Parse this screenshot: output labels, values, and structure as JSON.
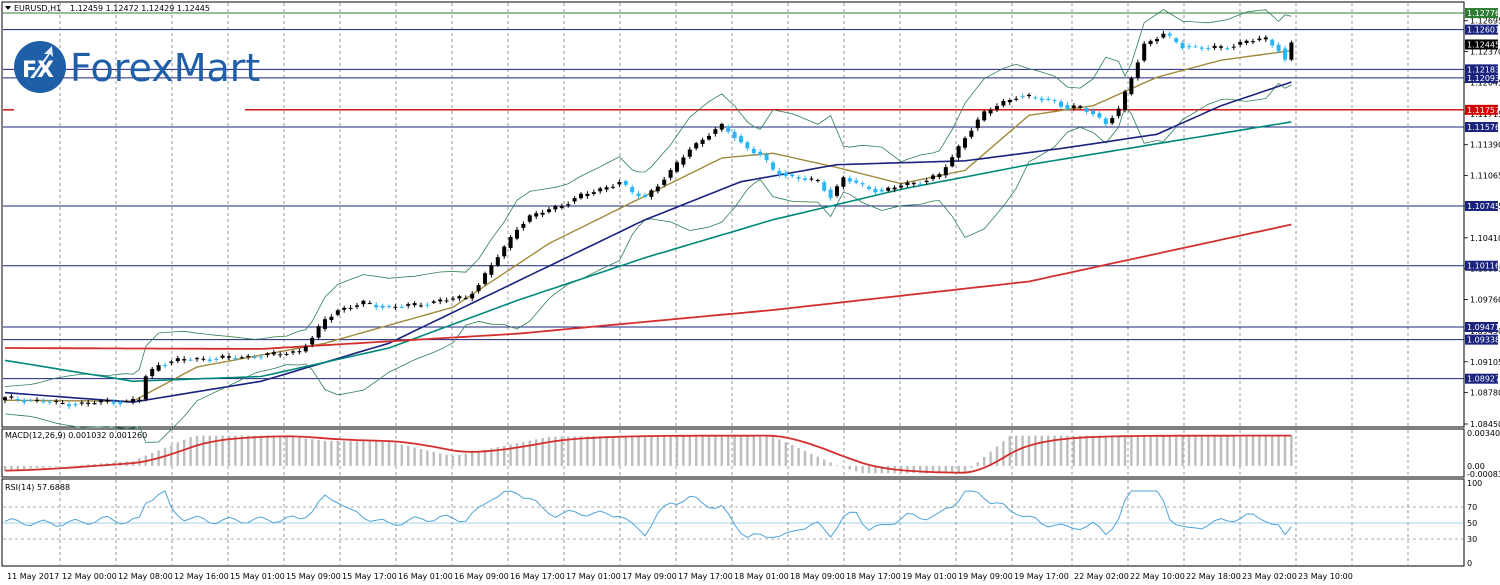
{
  "header": {
    "symbol": "EURUSD,H1",
    "ohlc": "1.12459 1.12472 1.12429 1.12445",
    "macd_label": "MACD(12,26,9) 0.001032 0.001260",
    "rsi_label": "RSI(14) 57.6888"
  },
  "logo": {
    "badge": "FX",
    "text": "ForexMart"
  },
  "price_axis": {
    "ticks": [
      "1.12695",
      "1.12370",
      "1.12045",
      "1.11715",
      "1.11390",
      "1.11065",
      "1.10745",
      "1.10410",
      "1.10085",
      "1.09760",
      "1.09430",
      "1.09105",
      "1.08780",
      "1.08450"
    ],
    "current_price": "1.12445"
  },
  "macd_axis": {
    "ticks": [
      "0.003401",
      "0.00",
      "-0.000832"
    ]
  },
  "rsi_axis": {
    "ticks": [
      "100",
      "70",
      "50",
      "30",
      "0"
    ]
  },
  "time_axis": {
    "labels": [
      "11 May 2017",
      "12 May 00:00",
      "12 May 08:00",
      "12 May 16:00",
      "15 May 01:00",
      "15 May 09:00",
      "15 May 17:00",
      "16 May 01:00",
      "16 May 09:00",
      "16 May 17:00",
      "17 May 01:00",
      "17 May 09:00",
      "17 May 17:00",
      "18 May 01:00",
      "18 May 09:00",
      "18 May 17:00",
      "19 May 01:00",
      "19 May 09:00",
      "19 May 17:00",
      "22 May 02:00",
      "22 May 10:00",
      "22 May 18:00",
      "23 May 02:00",
      "23 May 10:00"
    ]
  },
  "levels": [
    {
      "value": "1.12776",
      "color": "#2e7d32",
      "bg": "#2e7d32"
    },
    {
      "value": "1.12601",
      "color": "#1a237e",
      "bg": "#1a237e"
    },
    {
      "value": "1.12183",
      "color": "#1a237e",
      "bg": "#1a237e"
    },
    {
      "value": "1.12093",
      "color": "#1a237e",
      "bg": "#1a237e"
    },
    {
      "value": "1.11757",
      "color": "#d50000",
      "bg": "#d50000"
    },
    {
      "value": "1.11576",
      "color": "#1a237e",
      "bg": "#1a237e"
    },
    {
      "value": "1.10745",
      "color": "#1a237e",
      "bg": "#1a237e"
    },
    {
      "value": "1.10116",
      "color": "#1a237e",
      "bg": "#1a237e"
    },
    {
      "value": "1.09471",
      "color": "#1a237e",
      "bg": "#1a237e"
    },
    {
      "value": "1.09338",
      "color": "#1a237e",
      "bg": "#1a237e"
    },
    {
      "value": "1.08927",
      "color": "#1a237e",
      "bg": "#1a237e"
    }
  ],
  "colors": {
    "bull": "#000000",
    "bear": "#29b6f6",
    "ma_fast": "#a08a3c",
    "ma_mid": "#1a237e",
    "ma_slow": "#00897b",
    "ma_long": "#d32f2f",
    "bands": "#2e7d5a",
    "macd_hist": "#bdbdbd",
    "macd_signal": "#d32f2f",
    "rsi": "#4fa3d8"
  },
  "chart_data": {
    "type": "candlestick",
    "title": "EURUSD,H1",
    "ylim": [
      1.0845,
      1.1285
    ],
    "close_path": [
      [
        0,
        1.0872
      ],
      [
        4,
        1.087
      ],
      [
        8,
        1.0867
      ],
      [
        12,
        1.0866
      ],
      [
        16,
        1.0869
      ],
      [
        19,
        1.0868
      ],
      [
        21,
        1.0871
      ],
      [
        22,
        1.0895
      ],
      [
        24,
        1.0908
      ],
      [
        28,
        1.0913
      ],
      [
        33,
        1.0914
      ],
      [
        38,
        1.0916
      ],
      [
        42,
        1.0918
      ],
      [
        46,
        1.0922
      ],
      [
        48,
        1.0935
      ],
      [
        50,
        1.0955
      ],
      [
        52,
        1.0965
      ],
      [
        56,
        1.0972
      ],
      [
        60,
        1.0968
      ],
      [
        64,
        1.097
      ],
      [
        68,
        1.0975
      ],
      [
        72,
        1.0978
      ],
      [
        74,
        1.0992
      ],
      [
        76,
        1.1012
      ],
      [
        78,
        1.103
      ],
      [
        80,
        1.1052
      ],
      [
        82,
        1.1063
      ],
      [
        86,
        1.1073
      ],
      [
        90,
        1.1085
      ],
      [
        93,
        1.1092
      ],
      [
        96,
        1.11
      ],
      [
        98,
        1.1088
      ],
      [
        100,
        1.1084
      ],
      [
        102,
        1.1097
      ],
      [
        104,
        1.111
      ],
      [
        107,
        1.1135
      ],
      [
        110,
        1.115
      ],
      [
        112,
        1.1158
      ],
      [
        114,
        1.1148
      ],
      [
        116,
        1.1135
      ],
      [
        118,
        1.1128
      ],
      [
        120,
        1.1112
      ],
      [
        123,
        1.1105
      ],
      [
        127,
        1.11
      ],
      [
        129,
        1.1085
      ],
      [
        131,
        1.1104
      ],
      [
        134,
        1.1095
      ],
      [
        137,
        1.109
      ],
      [
        140,
        1.1096
      ],
      [
        143,
        1.11
      ],
      [
        146,
        1.1107
      ],
      [
        148,
        1.1125
      ],
      [
        150,
        1.1148
      ],
      [
        153,
        1.1172
      ],
      [
        156,
        1.1184
      ],
      [
        158,
        1.119
      ],
      [
        161,
        1.1188
      ],
      [
        164,
        1.1185
      ],
      [
        166,
        1.1177
      ],
      [
        168,
        1.1178
      ],
      [
        170,
        1.1172
      ],
      [
        172,
        1.1162
      ],
      [
        174,
        1.1175
      ],
      [
        176,
        1.121
      ],
      [
        178,
        1.1245
      ],
      [
        181,
        1.1255
      ],
      [
        184,
        1.1243
      ],
      [
        188,
        1.124
      ],
      [
        191,
        1.1242
      ],
      [
        194,
        1.1248
      ],
      [
        197,
        1.125
      ],
      [
        199,
        1.124
      ],
      [
        200,
        1.1228
      ],
      [
        201,
        1.1245
      ]
    ],
    "moving_averages": [
      {
        "name": "fast",
        "path": [
          [
            0,
            1.087
          ],
          [
            20,
            1.0869
          ],
          [
            30,
            1.0905
          ],
          [
            50,
            1.093
          ],
          [
            70,
            1.0968
          ],
          [
            85,
            1.1035
          ],
          [
            100,
            1.1085
          ],
          [
            112,
            1.1125
          ],
          [
            120,
            1.113
          ],
          [
            130,
            1.1115
          ],
          [
            140,
            1.1098
          ],
          [
            150,
            1.1112
          ],
          [
            160,
            1.117
          ],
          [
            170,
            1.118
          ],
          [
            180,
            1.121
          ],
          [
            190,
            1.1228
          ],
          [
            201,
            1.1238
          ]
        ]
      },
      {
        "name": "mid",
        "path": [
          [
            0,
            1.0878
          ],
          [
            20,
            1.0868
          ],
          [
            40,
            1.089
          ],
          [
            60,
            1.093
          ],
          [
            80,
            1.0995
          ],
          [
            100,
            1.106
          ],
          [
            115,
            1.11
          ],
          [
            130,
            1.1118
          ],
          [
            150,
            1.1122
          ],
          [
            165,
            1.1135
          ],
          [
            180,
            1.115
          ],
          [
            190,
            1.118
          ],
          [
            201,
            1.1205
          ]
        ]
      },
      {
        "name": "slow",
        "path": [
          [
            0,
            1.0912
          ],
          [
            20,
            1.089
          ],
          [
            40,
            1.0895
          ],
          [
            60,
            1.0925
          ],
          [
            80,
            1.0975
          ],
          [
            100,
            1.102
          ],
          [
            120,
            1.106
          ],
          [
            140,
            1.1092
          ],
          [
            160,
            1.1118
          ],
          [
            180,
            1.114
          ],
          [
            201,
            1.1163
          ]
        ]
      },
      {
        "name": "long",
        "path": [
          [
            0,
            1.0925
          ],
          [
            40,
            1.0924
          ],
          [
            80,
            1.094
          ],
          [
            120,
            1.0965
          ],
          [
            160,
            1.0995
          ],
          [
            201,
            1.1055
          ]
        ]
      }
    ],
    "macd_hist_range": [
      -0.000832,
      0.003401
    ],
    "rsi_range": [
      0,
      100
    ]
  }
}
